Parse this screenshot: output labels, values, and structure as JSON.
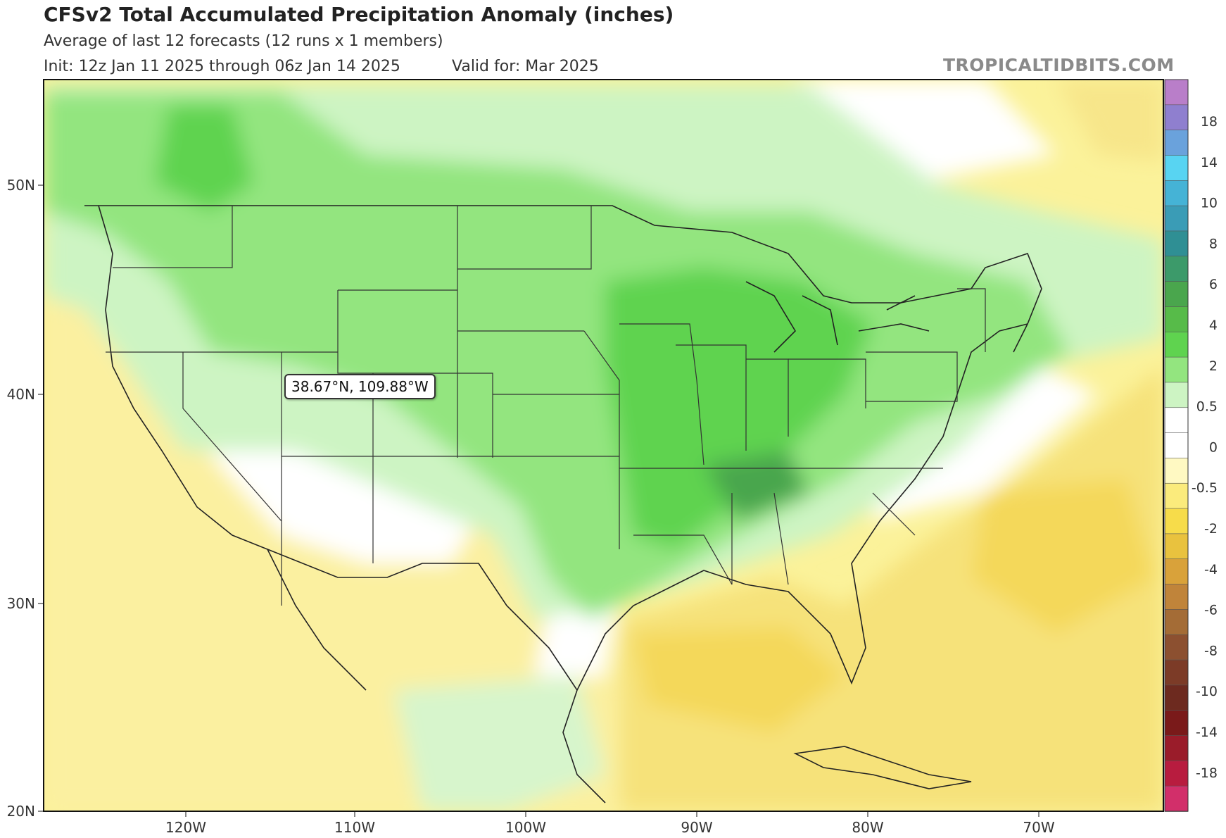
{
  "header": {
    "title": "CFSv2 Total Accumulated Precipitation Anomaly (inches)",
    "subtitle": "Average of last 12 forecasts (12 runs x 1 members)",
    "init": "Init: 12z Jan 11 2025 through 06z Jan 14 2025",
    "valid": "Valid for: Mar 2025",
    "brand": "TROPICALTIDBITS.COM"
  },
  "tooltip": {
    "text": "38.67°N, 109.88°W"
  },
  "axes": {
    "lon_labels": [
      "120W",
      "110W",
      "100W",
      "90W",
      "80W",
      "70W"
    ],
    "lat_labels": [
      "50N",
      "40N",
      "30N",
      "20N"
    ]
  },
  "legend": {
    "labels": [
      "18",
      "14",
      "10",
      "8",
      "6",
      "4",
      "2",
      "0.5",
      "0",
      "-0.5",
      "-2",
      "-4",
      "-6",
      "-8",
      "-10",
      "-14",
      "-18"
    ],
    "colors": [
      "#b97ec9",
      "#8f7fcf",
      "#6aa2dc",
      "#58d4f2",
      "#45b3d6",
      "#3a9cb6",
      "#2f8f94",
      "#3c9a6a",
      "#4aa64d",
      "#57bb49",
      "#5fd34f",
      "#93e57f",
      "#cdf4c3",
      "#ffffff",
      "#ffffff",
      "#fff9c2",
      "#fbeb7c",
      "#f7dc4a",
      "#e9c23e",
      "#d9a23a",
      "#c0843a",
      "#a46c36",
      "#8c5030",
      "#7c3b27",
      "#6d2a1f",
      "#7a1a1a",
      "#9a1c2a",
      "#b81c3f",
      "#d22f6a"
    ],
    "colors_note": ""
  }
}
